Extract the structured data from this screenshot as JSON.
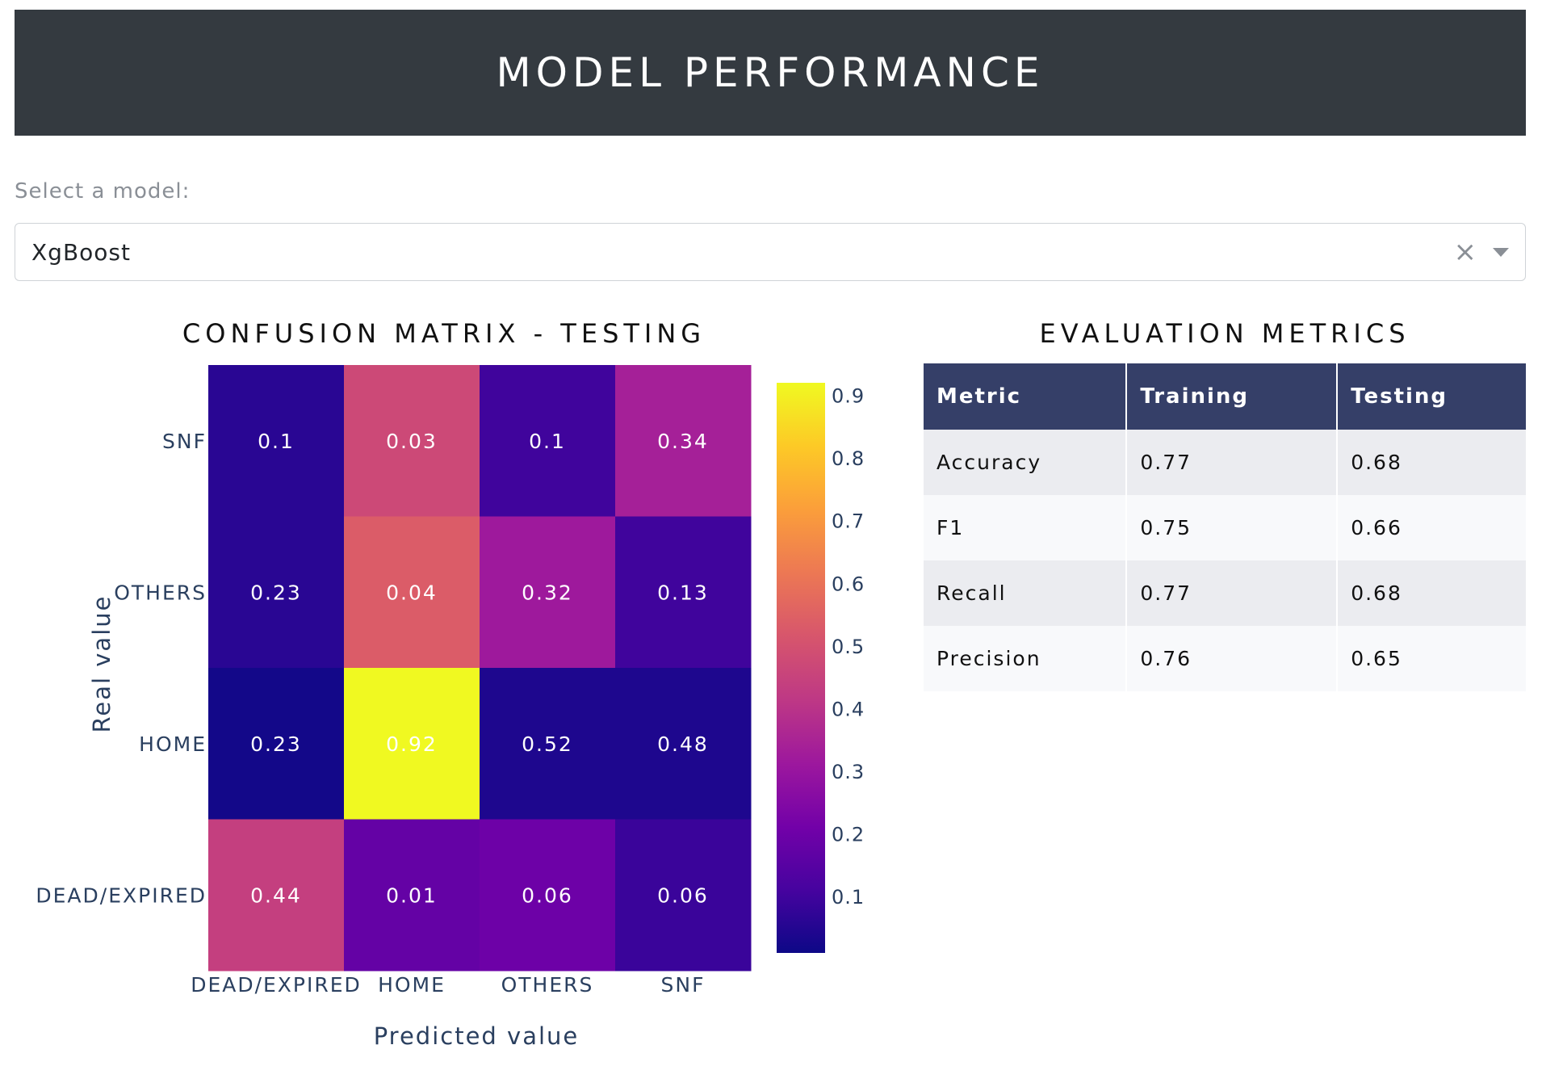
{
  "header": {
    "title": "MODEL PERFORMANCE"
  },
  "model_select": {
    "label": "Select a model:",
    "value": "XgBoost"
  },
  "icons": {
    "clear": "close-icon",
    "dropdown": "chevron-down-icon"
  },
  "confusion_matrix": {
    "title": "CONFUSION MATRIX - TESTING"
  },
  "metrics": {
    "title": "EVALUATION METRICS",
    "columns": [
      "Metric",
      "Training",
      "Testing"
    ],
    "rows": [
      [
        "Accuracy",
        "0.77",
        "0.68"
      ],
      [
        "F1",
        "0.75",
        "0.66"
      ],
      [
        "Recall",
        "0.77",
        "0.68"
      ],
      [
        "Precision",
        "0.76",
        "0.65"
      ]
    ],
    "colors": {
      "header_bg": "#353f68",
      "row_odd": "#ebecf0",
      "row_even": "#f8f9fb"
    }
  },
  "chart_data": {
    "type": "heatmap",
    "title": "CONFUSION MATRIX - TESTING",
    "xlabel": "Predicted value",
    "ylabel": "Real value",
    "x": [
      "DEAD/EXPIRED",
      "HOME",
      "OTHERS",
      "SNF"
    ],
    "y": [
      "SNF",
      "OTHERS",
      "HOME",
      "DEAD/EXPIRED"
    ],
    "z": [
      [
        0.1,
        0.03,
        0.1,
        0.34
      ],
      [
        0.23,
        0.04,
        0.32,
        0.13
      ],
      [
        0.23,
        0.92,
        0.52,
        0.48
      ],
      [
        0.44,
        0.01,
        0.06,
        0.06
      ]
    ],
    "fill_levels": [
      [
        0.06,
        0.47,
        0.1,
        0.34
      ],
      [
        0.06,
        0.53,
        0.32,
        0.1
      ],
      [
        0.02,
        0.92,
        0.04,
        0.04
      ],
      [
        0.44,
        0.18,
        0.2,
        0.09
      ]
    ],
    "colorscale": "plasma",
    "colorbar": {
      "ticks": [
        "0.9",
        "0.8",
        "0.7",
        "0.6",
        "0.5",
        "0.4",
        "0.3",
        "0.2",
        "0.1"
      ],
      "range": [
        0.01,
        0.92
      ]
    }
  }
}
